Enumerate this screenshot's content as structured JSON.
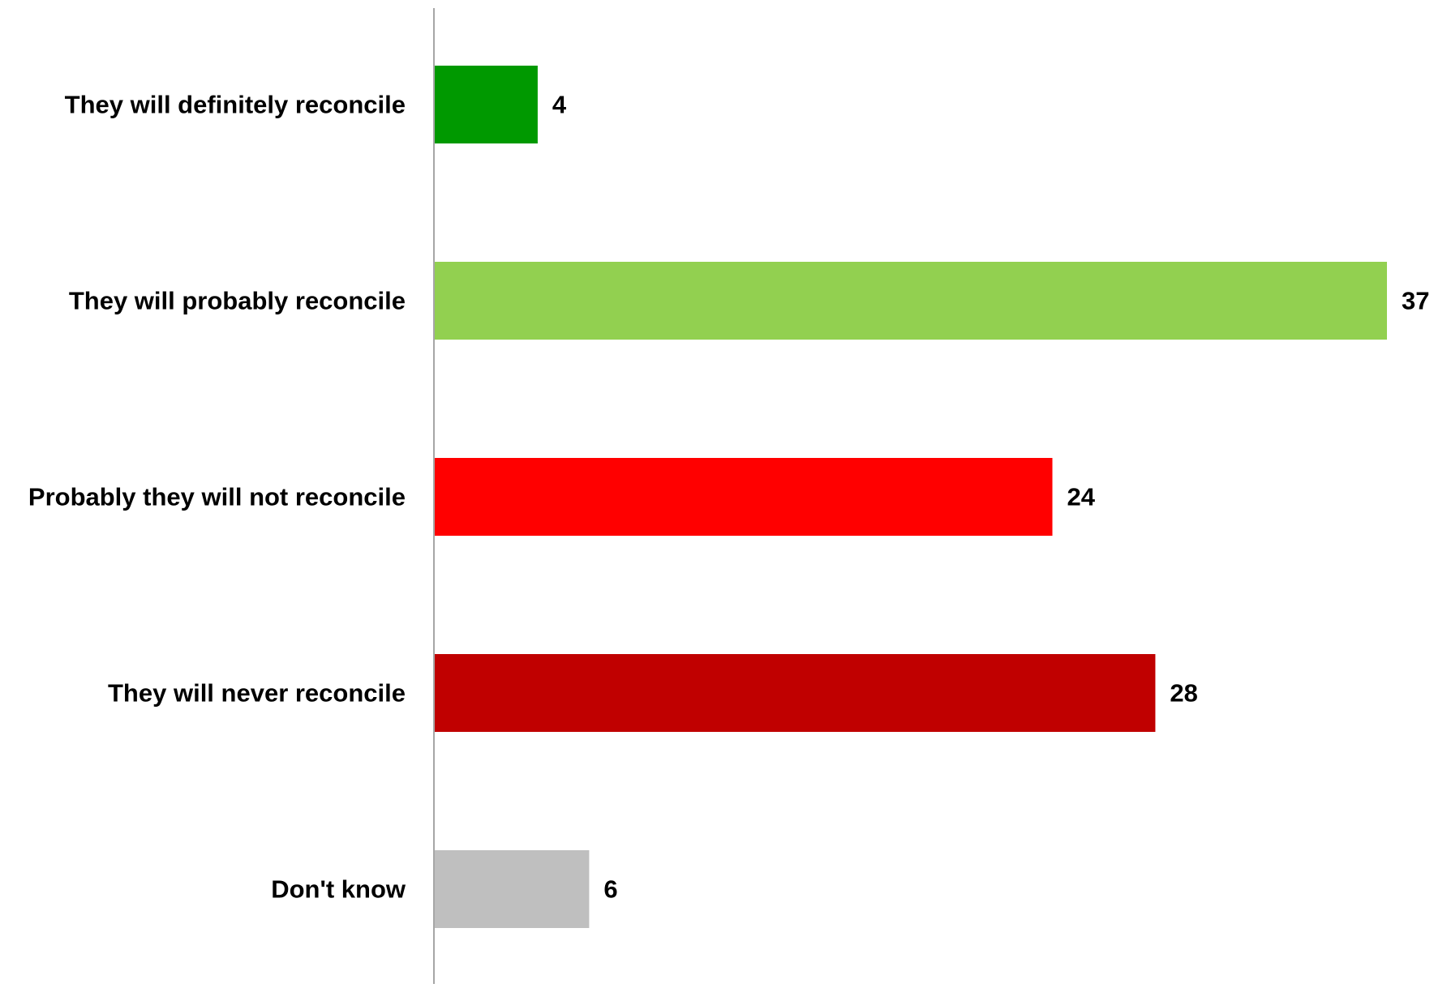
{
  "chart_data": {
    "type": "bar",
    "orientation": "horizontal",
    "categories": [
      "They will definitely reconcile",
      "They will probably reconcile",
      "Probably they will not reconcile",
      "They will never reconcile",
      "Don't know"
    ],
    "values": [
      4,
      37,
      24,
      28,
      6
    ],
    "colors": [
      "#009900",
      "#92d050",
      "#ff0000",
      "#c00000",
      "#bfbfbf"
    ],
    "title": "",
    "xlabel": "",
    "ylabel": "",
    "xlim": [
      0,
      37
    ],
    "grid": false,
    "legend": false,
    "data_labels": true
  }
}
